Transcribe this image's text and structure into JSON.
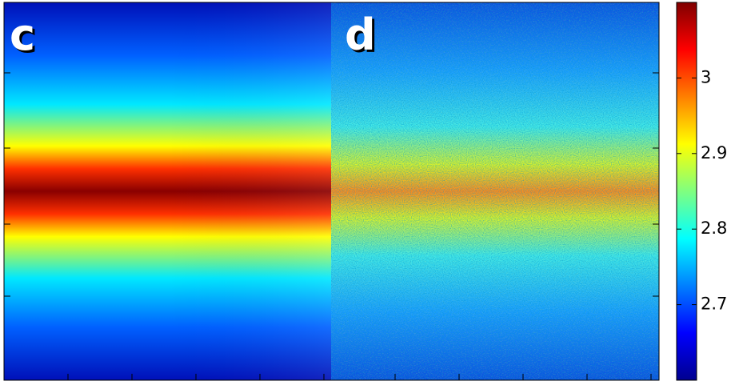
{
  "chart_data": {
    "type": "heatmap",
    "panels": [
      {
        "label": "c"
      },
      {
        "label": "d"
      }
    ],
    "colorbar": {
      "clim": [
        2.6,
        3.1
      ],
      "ticks": [
        2.7,
        2.8,
        2.9,
        3
      ]
    }
  }
}
